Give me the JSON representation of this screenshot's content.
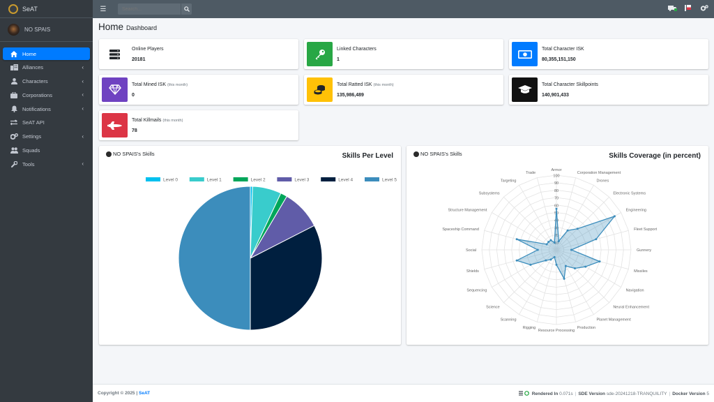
{
  "app": {
    "brand": "SeAT"
  },
  "user": {
    "name": "NO SPAIS"
  },
  "search": {
    "placeholder": "Search..."
  },
  "sidebar": {
    "items": [
      {
        "label": "Home",
        "icon": "home-icon",
        "active": true,
        "has_children": false
      },
      {
        "label": "Alliances",
        "icon": "building-icon",
        "has_children": true
      },
      {
        "label": "Characters",
        "icon": "user-icon",
        "has_children": true
      },
      {
        "label": "Corporations",
        "icon": "briefcase-icon",
        "has_children": true
      },
      {
        "label": "Notifications",
        "icon": "bell-icon",
        "has_children": true
      },
      {
        "label": "SeAT API",
        "icon": "exchange-icon",
        "has_children": false
      },
      {
        "label": "Settings",
        "icon": "cogs-icon",
        "has_children": true
      },
      {
        "label": "Squads",
        "icon": "users-icon",
        "has_children": false
      },
      {
        "label": "Tools",
        "icon": "wrench-icon",
        "has_children": true
      }
    ]
  },
  "header": {
    "title": "Home",
    "subtitle": "Dashboard"
  },
  "stats": [
    {
      "label": "Online Players",
      "sub": "",
      "value": "20181",
      "color": "#ffffff",
      "icon": "server-icon"
    },
    {
      "label": "Linked Characters",
      "sub": "",
      "value": "1",
      "color": "#28a745",
      "icon": "key-icon"
    },
    {
      "label": "Total Character ISK",
      "sub": "",
      "value": "80,355,151,150",
      "color": "#007bff",
      "icon": "money-icon"
    },
    {
      "label": "Total Mined ISK",
      "sub": "(this month)",
      "value": "0",
      "color": "#6f42c1",
      "icon": "gem-icon"
    },
    {
      "label": "Total Ratted ISK",
      "sub": "(this month)",
      "value": "135,986,489",
      "color": "#ffc107",
      "icon": "coins-icon"
    },
    {
      "label": "Total Character Skillpoints",
      "sub": "",
      "value": "140,901,433",
      "color": "#111111",
      "icon": "graduation-cap-icon"
    },
    {
      "label": "Total Killmails",
      "sub": "(this month)",
      "value": "78",
      "color": "#dc3545",
      "icon": "space-shuttle-icon"
    }
  ],
  "skills_card": {
    "character": "NO SPAIS's Skills",
    "title": "Skills Per Level"
  },
  "coverage_card": {
    "character": "NO SPAIS's Skills",
    "title": "Skills Coverage (in percent)"
  },
  "chart_data": [
    {
      "type": "pie",
      "title": "Skills Per Level",
      "categories": [
        "Level 0",
        "Level 1",
        "Level 2",
        "Level 3",
        "Level 4",
        "Level 5"
      ],
      "values": [
        0.5,
        6.5,
        1.5,
        9,
        32.5,
        50
      ],
      "colors": [
        "#00c0ef",
        "#39cccc",
        "#00a65a",
        "#605ca8",
        "#001f3f",
        "#3c8dbc"
      ],
      "legend": "top"
    },
    {
      "type": "radar",
      "title": "Skills Coverage (in percent)",
      "categories": [
        "Armor",
        "Corporation Management",
        "Drones",
        "Electronic Systems",
        "Engineering",
        "Fleet Support",
        "Gunnery",
        "Missiles",
        "Navigation",
        "Neural Enhancement",
        "Planet Management",
        "Production",
        "Resource Processing",
        "Rigging",
        "Scanning",
        "Science",
        "Sequencing",
        "Shields",
        "Social",
        "Spaceship Command",
        "Structure Management",
        "Subsystems",
        "Targeting",
        "Trade"
      ],
      "values": [
        55,
        12,
        30,
        40,
        90,
        55,
        20,
        60,
        45,
        35,
        25,
        40,
        20,
        10,
        15,
        20,
        40,
        55,
        25,
        55,
        15,
        15,
        15,
        10
      ],
      "rlim": [
        0,
        100
      ],
      "ticks": [
        "10",
        "20",
        "30",
        "40",
        "50",
        "60",
        "70",
        "80",
        "90",
        "100"
      ]
    }
  ],
  "footer": {
    "copyright": "Copyright © 2025 |",
    "brand": "SeAT",
    "rendered_label": "Rendered In",
    "rendered_value": "0.071s",
    "sde_label": "SDE Version",
    "sde_value": "sde-20241218-TRANQUILITY",
    "docker_label": "Docker Version",
    "docker_value": "5"
  }
}
